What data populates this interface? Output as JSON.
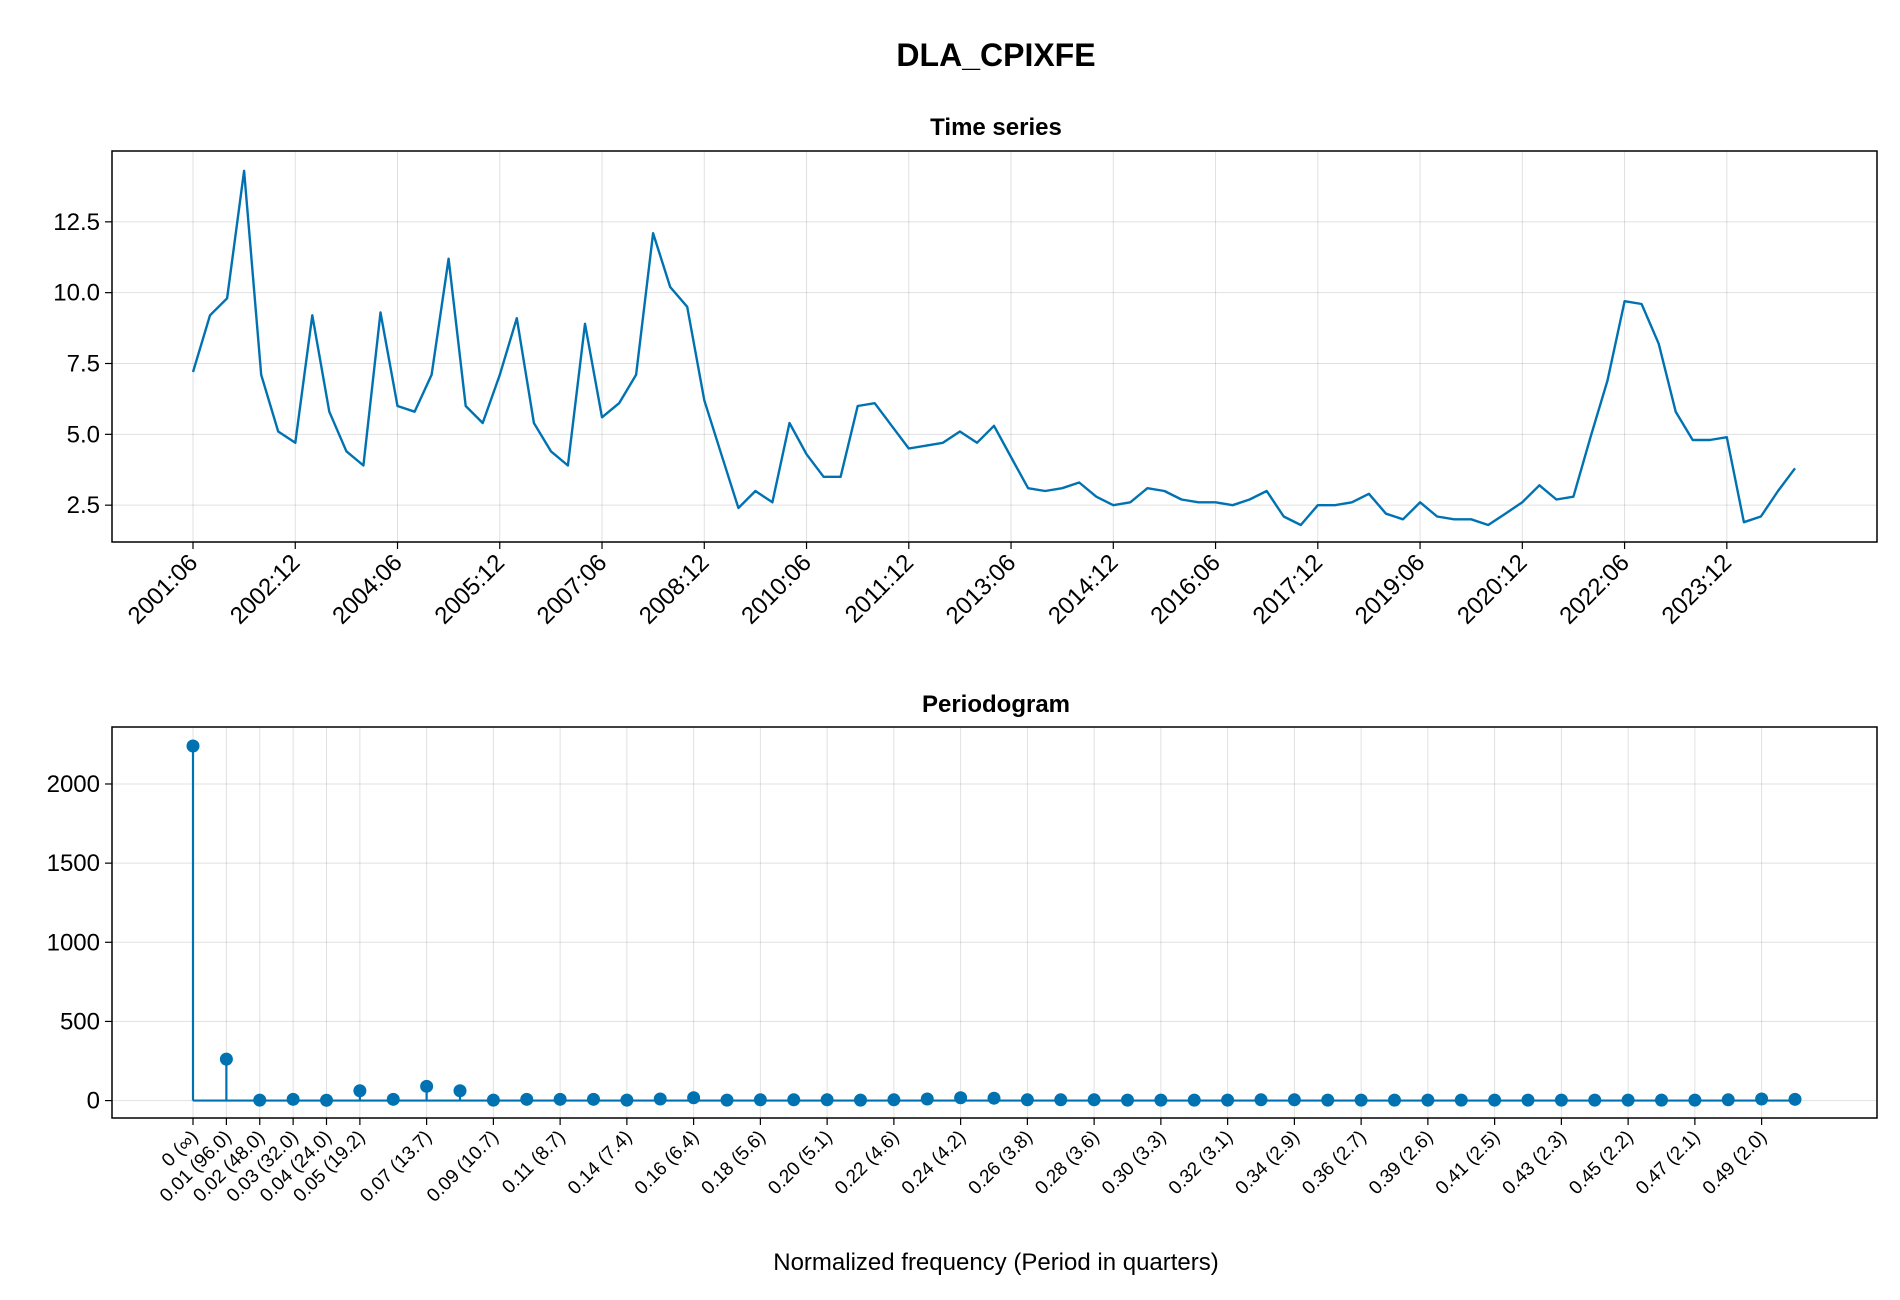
{
  "title": "DLA_CPIXFE",
  "chart_data": [
    {
      "type": "line",
      "title": "Time series",
      "xlabel": "",
      "ylabel": "",
      "x_tick_labels": [
        "2001:06",
        "2002:12",
        "2004:06",
        "2005:12",
        "2007:06",
        "2008:12",
        "2010:06",
        "2011:12",
        "2013:06",
        "2014:12",
        "2016:06",
        "2017:12",
        "2019:06",
        "2020:12",
        "2022:06",
        "2023:12"
      ],
      "y_ticks": [
        2.5,
        5.0,
        7.5,
        10.0,
        12.5
      ],
      "y_tick_labels": [
        "2.5",
        "5.0",
        "7.5",
        "10.0",
        "12.5"
      ],
      "ylim": [
        1.2,
        15.0
      ],
      "grid": true,
      "series": [
        {
          "values": [
            7.2,
            9.2,
            9.8,
            14.3,
            7.1,
            5.1,
            4.7,
            9.2,
            5.8,
            4.4,
            3.9,
            9.3,
            6.0,
            5.8,
            7.1,
            11.2,
            6.0,
            5.4,
            7.1,
            9.1,
            5.4,
            4.4,
            3.9,
            8.9,
            5.6,
            6.1,
            7.1,
            12.1,
            10.2,
            9.5,
            6.2,
            4.3,
            2.4,
            3.0,
            2.6,
            5.4,
            4.3,
            3.5,
            3.5,
            6.0,
            6.1,
            5.3,
            4.5,
            4.6,
            4.7,
            5.1,
            4.7,
            5.3,
            4.2,
            3.1,
            3.0,
            3.1,
            3.3,
            2.8,
            2.5,
            2.6,
            3.1,
            3.0,
            2.7,
            2.6,
            2.6,
            2.5,
            2.7,
            3.0,
            2.1,
            1.8,
            2.5,
            2.5,
            2.6,
            2.9,
            2.2,
            2.0,
            2.6,
            2.1,
            2.0,
            2.0,
            1.8,
            2.2,
            2.6,
            3.2,
            2.7,
            2.8,
            4.9,
            6.9,
            9.7,
            9.6,
            8.2,
            5.8,
            4.8,
            4.8,
            4.9,
            1.9,
            2.1,
            3.0,
            3.8
          ]
        }
      ]
    },
    {
      "type": "scatter",
      "title": "Periodogram",
      "xlabel": "Normalized frequency (Period in quarters)",
      "ylabel": "",
      "x_tick_labels": [
        "0 (∞)",
        "0.01 (96.0)",
        "0.02 (48.0)",
        "0.03 (32.0)",
        "0.04 (24.0)",
        "0.05 (19.2)",
        "0.07 (13.7)",
        "0.09 (10.7)",
        "0.11 (8.7)",
        "0.14 (7.4)",
        "0.16 (6.4)",
        "0.18 (5.6)",
        "0.20 (5.1)",
        "0.22 (4.6)",
        "0.24 (4.2)",
        "0.26 (3.8)",
        "0.28 (3.6)",
        "0.30 (3.3)",
        "0.32 (3.1)",
        "0.34 (2.9)",
        "0.36 (2.7)",
        "0.39 (2.6)",
        "0.41 (2.5)",
        "0.43 (2.3)",
        "0.45 (2.2)",
        "0.47 (2.1)",
        "0.49 (2.0)"
      ],
      "y_ticks": [
        0,
        500,
        1000,
        1500,
        2000
      ],
      "y_tick_labels": [
        "0",
        "500",
        "1000",
        "1500",
        "2000"
      ],
      "ylim": [
        -110,
        2360
      ],
      "grid": true,
      "series": [
        {
          "values": [
            2240,
            262,
            3,
            8,
            2,
            62,
            8,
            90,
            62,
            3,
            8,
            8,
            8,
            3,
            10,
            18,
            3,
            5,
            5,
            5,
            3,
            5,
            10,
            18,
            15,
            5,
            5,
            5,
            3,
            3,
            3,
            3,
            5,
            5,
            3,
            3,
            3,
            3,
            3,
            3,
            3,
            3,
            3,
            3,
            3,
            3,
            5,
            10,
            8
          ]
        }
      ]
    }
  ]
}
